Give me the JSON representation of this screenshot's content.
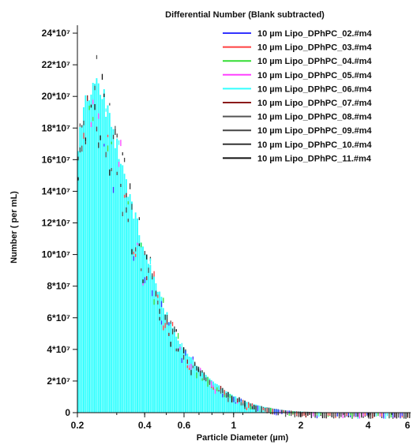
{
  "chart_data": {
    "type": "bar",
    "title": "Differential Number  (Blank subtracted)",
    "xlabel": "Particle Diameter (µm)",
    "ylabel": "Number ( per mL)",
    "x_scale": "log",
    "xlim": [
      0.2,
      6.2
    ],
    "ylim": [
      0,
      245000000.0
    ],
    "x_ticks": [
      0.2,
      0.4,
      0.6,
      1,
      2,
      4,
      6
    ],
    "x_tick_labels": [
      "0.2",
      "0.4",
      "0.6",
      "1",
      "2",
      "4",
      "6"
    ],
    "y_ticks": [
      0,
      20000000.0,
      40000000.0,
      60000000.0,
      80000000.0,
      100000000.0,
      120000000.0,
      140000000.0,
      160000000.0,
      180000000.0,
      200000000.0,
      220000000.0,
      240000000.0
    ],
    "y_tick_labels": [
      "0",
      "2*10⁷",
      "4*10⁷",
      "6*10⁷",
      "8*10⁷",
      "10*10⁷",
      "12*10⁷",
      "14*10⁷",
      "16*10⁷",
      "18*10⁷",
      "20*10⁷",
      "22*10⁷",
      "24*10⁷"
    ],
    "grid": false,
    "legend_position": "top-right",
    "series": [
      {
        "name": "10 µm Lipo_DPhPC_02.#m4",
        "color": "#3333ff"
      },
      {
        "name": "10 µm Lipo_DPhPC_03.#m4",
        "color": "#ff4040"
      },
      {
        "name": "10 µm Lipo_DPhPC_04.#m4",
        "color": "#33dd33"
      },
      {
        "name": "10 µm Lipo_DPhPC_05.#m4",
        "color": "#ff40ff"
      },
      {
        "name": "10 µm Lipo_DPhPC_06.#m4",
        "color": "#33ffff"
      },
      {
        "name": "10 µm Lipo_DPhPC_07.#m4",
        "color": "#8b1a1a"
      },
      {
        "name": "10 µm Lipo_DPhPC_08.#m4",
        "color": "#555555"
      },
      {
        "name": "10 µm Lipo_DPhPC_09.#m4",
        "color": "#444444"
      },
      {
        "name": "10 µm Lipo_DPhPC_10.#m4",
        "color": "#333333"
      },
      {
        "name": "10 µm Lipo_DPhPC_11.#m4",
        "color": "#111111"
      }
    ],
    "envelope": {
      "x": [
        0.2,
        0.21,
        0.22,
        0.23,
        0.24,
        0.25,
        0.26,
        0.27,
        0.28,
        0.3,
        0.32,
        0.34,
        0.36,
        0.38,
        0.4,
        0.43,
        0.46,
        0.5,
        0.55,
        0.6,
        0.65,
        0.7,
        0.8,
        0.9,
        1.0,
        1.2,
        1.4,
        1.6,
        1.8,
        2.0,
        2.5,
        3.0,
        4.0,
        5.0,
        6.0
      ],
      "y": [
        175000000.0,
        190000000.0,
        205000000.0,
        215000000.0,
        220000000.0,
        218000000.0,
        210000000.0,
        200000000.0,
        190000000.0,
        175000000.0,
        160000000.0,
        145000000.0,
        130000000.0,
        118000000.0,
        105000000.0,
        92000000.0,
        80000000.0,
        65000000.0,
        52000000.0,
        42000000.0,
        35000000.0,
        29000000.0,
        21000000.0,
        15000000.0,
        11000000.0,
        6000000.0,
        3500000.0,
        2000000.0,
        1200000.0,
        700000.0,
        300000.0,
        150000.0,
        80000.0,
        40000.0,
        20000.0
      ]
    }
  }
}
